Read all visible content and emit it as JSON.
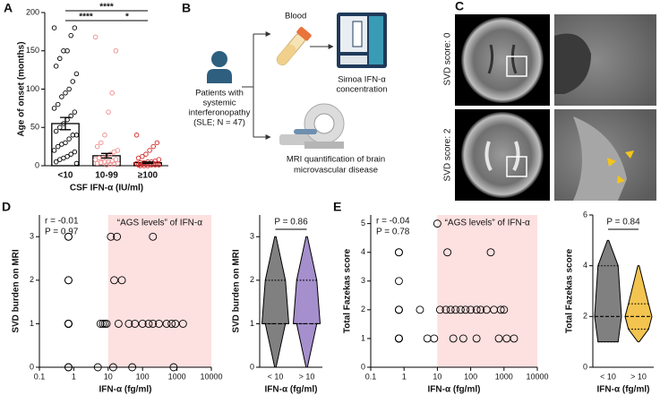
{
  "chart_data": [
    {
      "type": "bar",
      "label": "A",
      "ylabel": "Age of onset (months)",
      "xlabel": "CSF IFN-α (IU/ml)",
      "categories": [
        "<10",
        "10-99",
        "≥100"
      ],
      "values": [
        55,
        13,
        4
      ],
      "errors": [
        8,
        3,
        1
      ],
      "color": "#000000",
      "point_colors": [
        "#000000",
        "#f08a8a",
        "#d62728"
      ],
      "points": [
        [
          180,
          180,
          170,
          150,
          150,
          140,
          130,
          120,
          110,
          100,
          95,
          90,
          80,
          75,
          70,
          65,
          60,
          55,
          50,
          45,
          40,
          40,
          35,
          30,
          28,
          25,
          20,
          18,
          15,
          12,
          10,
          8,
          5,
          3
        ],
        [
          168,
          150,
          95,
          70,
          40,
          30,
          25,
          20,
          18,
          15,
          12,
          10,
          10,
          8,
          8,
          6,
          5,
          5,
          4,
          3,
          3,
          2,
          2,
          1
        ],
        [
          40,
          30,
          25,
          20,
          15,
          12,
          10,
          8,
          6,
          5,
          5,
          4,
          4,
          3,
          3,
          3,
          2,
          2,
          2,
          1,
          1,
          1,
          1,
          0,
          0,
          0
        ]
      ],
      "ylim": [
        0,
        200
      ],
      "yticks": [
        0,
        50,
        100,
        150,
        200
      ],
      "significance": [
        "****",
        "****",
        "*"
      ]
    },
    {
      "type": "scatter",
      "label": "D",
      "log_x": true,
      "xlabel": "IFN-α (fg/ml)",
      "ylabel": "SVD burden on MRI",
      "annotations": [
        "r = -0.01",
        "P = 0.97"
      ],
      "shade": [
        10,
        10000
      ],
      "shade_label": "“AGS levels” of IFN-α",
      "shade_color": "#fde0e0",
      "x": [
        0.7,
        0.7,
        0.7,
        0.7,
        0.7,
        0.7,
        0.7,
        0.7,
        0.7,
        0.7,
        0.7,
        12,
        18,
        200,
        15,
        25,
        6,
        7,
        8,
        9,
        20,
        40,
        60,
        100,
        150,
        200,
        300,
        500,
        700,
        900,
        1500,
        5,
        14,
        50,
        800
      ],
      "values": [
        3,
        3,
        2,
        2,
        1,
        1,
        1,
        1,
        1,
        0,
        0,
        3,
        3,
        3,
        2,
        2,
        1,
        1,
        1,
        1,
        1,
        1,
        1,
        1,
        1,
        1,
        1,
        1,
        1,
        1,
        1,
        0,
        0,
        0,
        0
      ],
      "xlim": [
        0.1,
        10000
      ],
      "xticks": [
        0.1,
        1,
        10,
        100,
        1000,
        10000
      ],
      "ylim": [
        0,
        3.5
      ],
      "yticks": [
        0,
        1,
        2,
        3
      ]
    },
    {
      "type": "violin",
      "xlabel": "IFN-α (fg/ml)",
      "ylabel": "SVD burden on MRI",
      "categories": [
        "< 10",
        "> 10"
      ],
      "groups": [
        {
          "color": "#808080",
          "min": 0,
          "q1": 1,
          "median": 1,
          "q3": 2,
          "max": 3
        },
        {
          "color": "#a58fcc",
          "min": 0,
          "q1": 1,
          "median": 1,
          "q3": 2,
          "max": 3
        }
      ],
      "p_label": "P = 0.86",
      "ylim": [
        0,
        3.5
      ],
      "yticks": [
        0,
        1,
        2,
        3
      ]
    },
    {
      "type": "scatter",
      "label": "E",
      "log_x": true,
      "xlabel": "IFN-α (fg/ml)",
      "ylabel": "Total Fazekas score",
      "annotations": [
        "r = -0.04",
        "P = 0.78"
      ],
      "shade": [
        10,
        10000
      ],
      "shade_label": "“AGS levels” of IFN-α",
      "shade_color": "#fde0e0",
      "x": [
        0.7,
        0.7,
        0.7,
        0.7,
        0.7,
        0.7,
        0.7,
        0.7,
        0.7,
        0.7,
        10,
        20,
        400,
        3,
        12,
        18,
        25,
        35,
        50,
        70,
        100,
        150,
        200,
        300,
        500,
        800,
        1000,
        5,
        8,
        30,
        60,
        150,
        700,
        1200,
        2000
      ],
      "values": [
        4,
        4,
        3,
        2,
        2,
        2,
        1,
        1,
        1,
        1,
        5,
        4,
        4,
        2,
        2,
        2,
        2,
        2,
        2,
        2,
        2,
        2,
        2,
        2,
        2,
        2,
        2,
        1,
        1,
        1,
        1,
        1,
        1,
        1,
        1
      ],
      "xlim": [
        0.1,
        10000
      ],
      "xticks": [
        0.1,
        1,
        10,
        100,
        1000,
        10000
      ],
      "ylim": [
        0,
        5.3
      ],
      "yticks": [
        0,
        1,
        2,
        3,
        4,
        5
      ]
    },
    {
      "type": "violin",
      "xlabel": "IFN-α (fg/ml)",
      "ylabel": "Total Fazekas score",
      "categories": [
        "< 10",
        "> 10"
      ],
      "groups": [
        {
          "color": "#808080",
          "min": 1,
          "q1": 1,
          "median": 2,
          "q3": 4,
          "max": 5
        },
        {
          "color": "#f3c44f",
          "min": 1,
          "q1": 1.5,
          "median": 2,
          "q3": 2.5,
          "max": 4
        }
      ],
      "p_label": "P = 0.84",
      "ylim": [
        0,
        6
      ],
      "yticks": [
        0,
        2,
        4,
        6
      ]
    }
  ],
  "diagram": {
    "label": "B",
    "blood": "Blood",
    "simoa": [
      "Simoa IFN-α",
      "concentration"
    ],
    "patients": [
      "Patients with",
      "systemic",
      "interferonopathy",
      "(SLE; N = 47)"
    ],
    "mri": [
      "MRI quantification of brain",
      "microvascular disease"
    ]
  },
  "images": {
    "label": "C",
    "rows": [
      "SVD score: 0",
      "SVD score: 2"
    ]
  }
}
